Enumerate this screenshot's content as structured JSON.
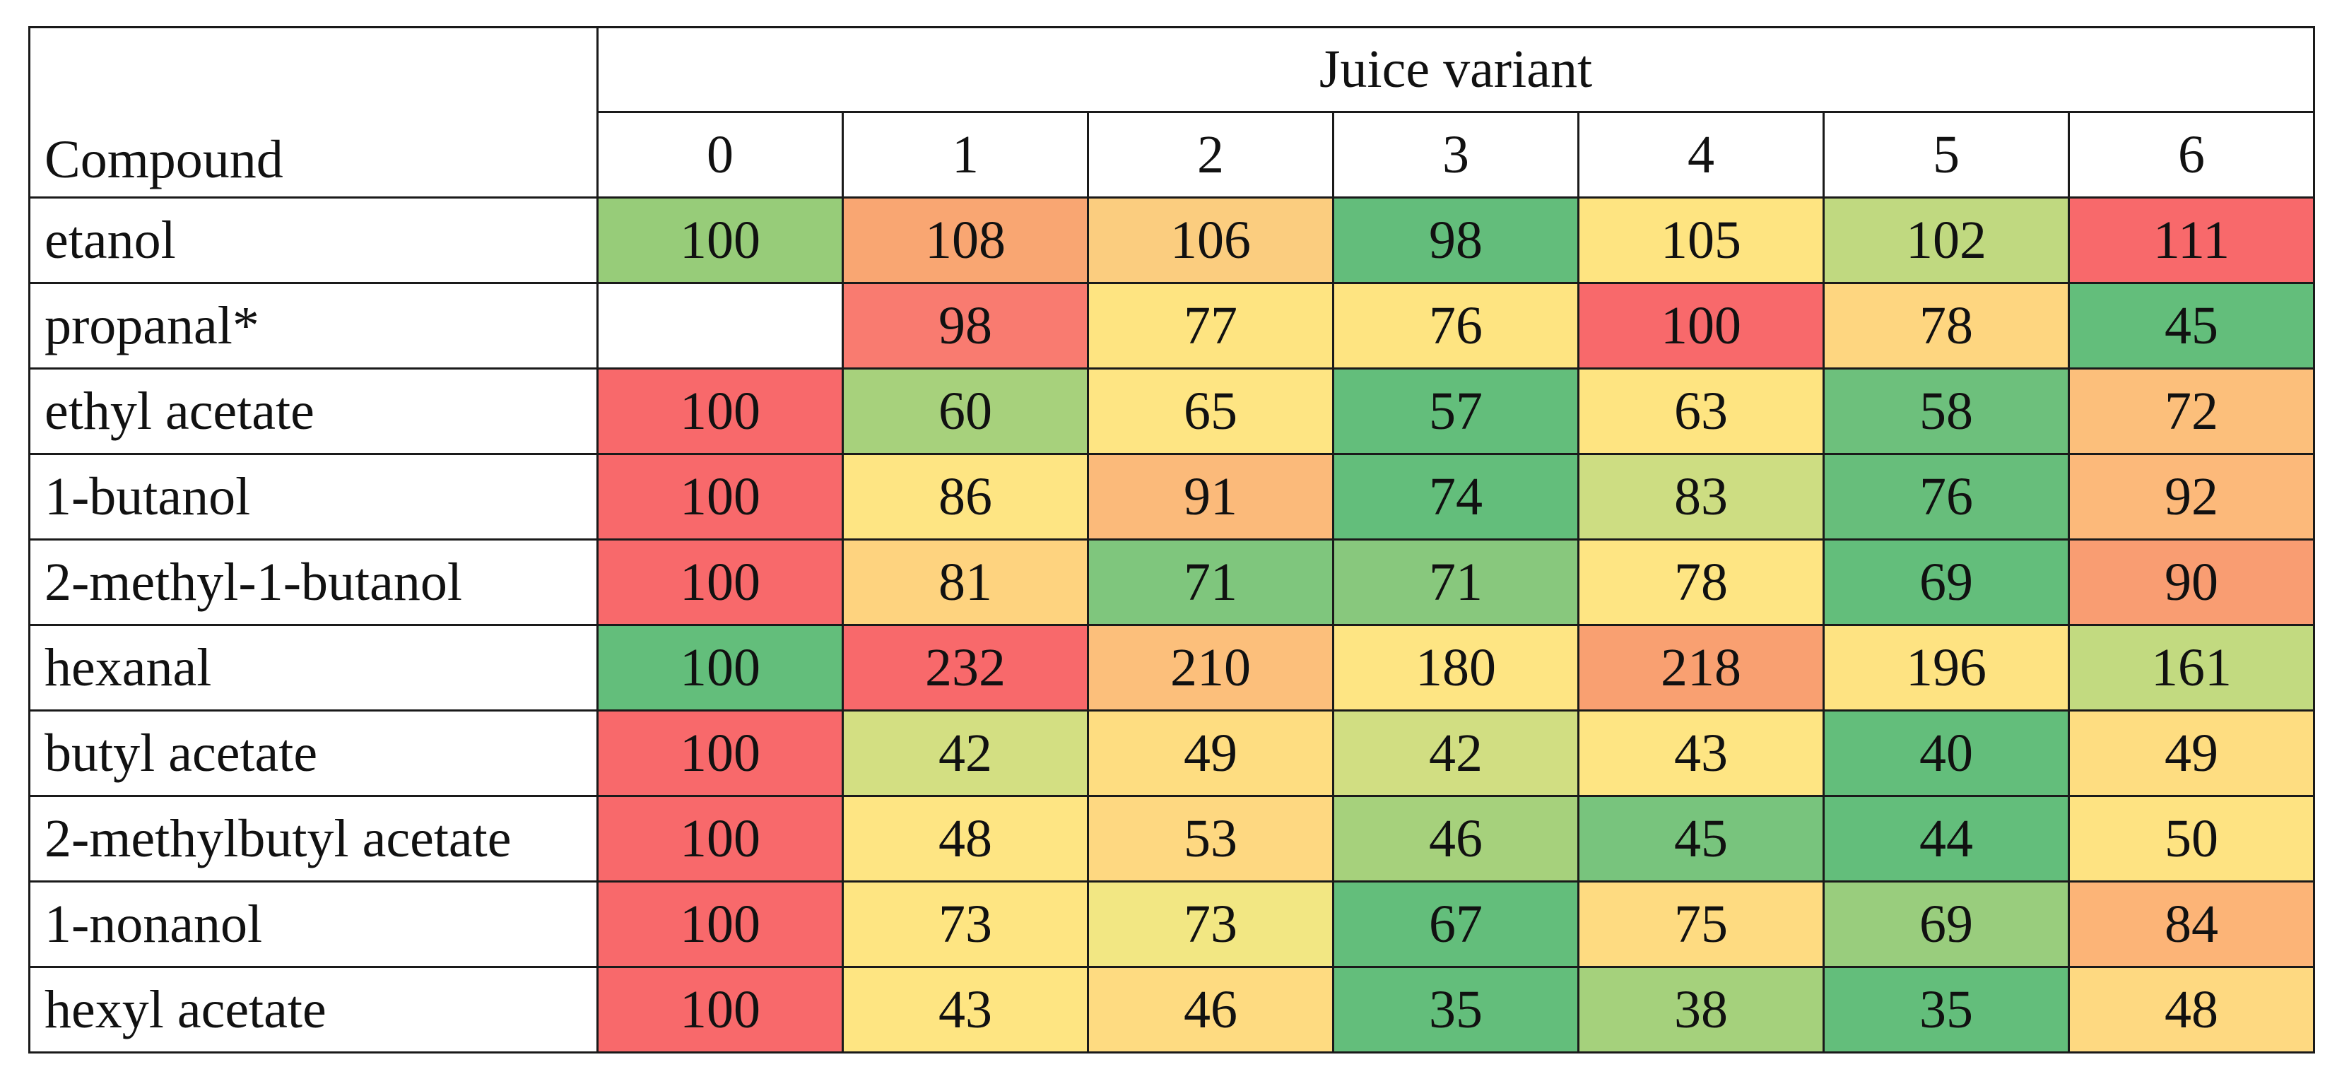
{
  "chart_data": {
    "type": "heatmap",
    "row_header": "Compound",
    "column_group_header": "Juice variant",
    "columns": [
      "0",
      "1",
      "2",
      "3",
      "4",
      "5",
      "6"
    ],
    "rows": [
      {
        "label": "etanol",
        "values": [
          "100",
          "108",
          "106",
          "98",
          "105",
          "102",
          "111"
        ],
        "colors": [
          "#97cc79",
          "#f9a672",
          "#fbcd7f",
          "#63bd7b",
          "#fee481",
          "#c0d980",
          "#f8696b"
        ]
      },
      {
        "label": "propanal*",
        "values": [
          "",
          "98",
          "77",
          "76",
          "100",
          "78",
          "45"
        ],
        "colors": [
          "#ffffff",
          "#f97b70",
          "#fee481",
          "#fee481",
          "#f8696b",
          "#fed680",
          "#63be7b"
        ]
      },
      {
        "label": "ethyl acetate",
        "values": [
          "100",
          "60",
          "65",
          "57",
          "63",
          "58",
          "72"
        ],
        "colors": [
          "#f8696b",
          "#a7d17c",
          "#fee583",
          "#63be7b",
          "#fee481",
          "#6dc07c",
          "#fcbf7b"
        ]
      },
      {
        "label": "1-butanol",
        "values": [
          "100",
          "86",
          "91",
          "74",
          "83",
          "76",
          "92"
        ],
        "colors": [
          "#f8696b",
          "#fee583",
          "#fbba7a",
          "#63be7b",
          "#cddd82",
          "#67be7b",
          "#fcb97a"
        ]
      },
      {
        "label": "2-methyl-1-butanol",
        "values": [
          "100",
          "81",
          "71",
          "71",
          "78",
          "69",
          "90"
        ],
        "colors": [
          "#f8696b",
          "#fed37f",
          "#7fc67d",
          "#88c87d",
          "#fee583",
          "#63be7b",
          "#f99d72"
        ]
      },
      {
        "label": "hexanal",
        "values": [
          "100",
          "232",
          "210",
          "180",
          "218",
          "196",
          "161"
        ],
        "colors": [
          "#63be7b",
          "#f8696b",
          "#fcbf7b",
          "#fee583",
          "#f9a071",
          "#fee382",
          "#c2da80"
        ]
      },
      {
        "label": "butyl acetate",
        "values": [
          "100",
          "42",
          "49",
          "42",
          "43",
          "40",
          "49"
        ],
        "colors": [
          "#f8696b",
          "#d3df82",
          "#fedd81",
          "#d1de82",
          "#fee583",
          "#63be7b",
          "#fedd81"
        ]
      },
      {
        "label": "2-methylbutyl acetate",
        "values": [
          "100",
          "48",
          "53",
          "46",
          "45",
          "44",
          "50"
        ],
        "colors": [
          "#f8696b",
          "#fee583",
          "#fed881",
          "#a6d17c",
          "#78c47d",
          "#63be7b",
          "#fee382"
        ]
      },
      {
        "label": "1-nonanol",
        "values": [
          "100",
          "73",
          "73",
          "67",
          "75",
          "69",
          "84"
        ],
        "colors": [
          "#f8696b",
          "#fee582",
          "#f2e783",
          "#63be7b",
          "#fedb81",
          "#99cd7d",
          "#fcb477"
        ]
      },
      {
        "label": "hexyl acetate",
        "values": [
          "100",
          "43",
          "46",
          "35",
          "38",
          "35",
          "48"
        ],
        "colors": [
          "#f8696b",
          "#fee582",
          "#fedb81",
          "#63be7b",
          "#a5d17c",
          "#63be7b",
          "#fed981"
        ]
      }
    ]
  }
}
